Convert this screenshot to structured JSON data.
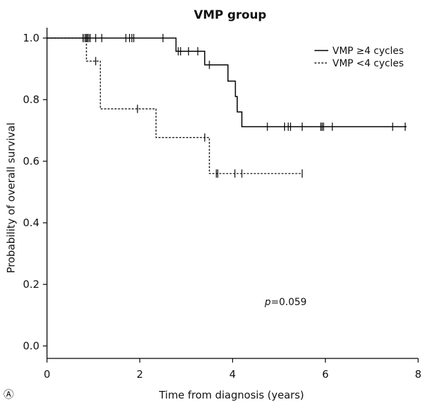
{
  "chart_data": {
    "type": "line",
    "subtype": "kaplan-meier step",
    "title": "VMP group",
    "xlabel": "Time from diagnosis (years)",
    "ylabel": "Probability of overall survival",
    "xlim": [
      0,
      8
    ],
    "ylim": [
      0.0,
      1.0
    ],
    "xticks": [
      "0",
      "2",
      "4",
      "6",
      "8"
    ],
    "yticks": [
      "0.0",
      "0.2",
      "0.4",
      "0.6",
      "0.8",
      "1.0"
    ],
    "grid": false,
    "legend_position": "top-right",
    "annotation_p_label": "p",
    "annotation_p_value": "=0.059",
    "panel_label": "Ⓐ",
    "series": [
      {
        "name": "VMP ≥4 cycles",
        "line_style": "solid",
        "color": "#000000",
        "steps": [
          [
            0,
            1.0
          ],
          [
            2.78,
            0.957
          ],
          [
            3.4,
            0.913
          ],
          [
            3.9,
            0.86
          ],
          [
            4.06,
            0.81
          ],
          [
            4.1,
            0.76
          ],
          [
            4.2,
            0.712
          ],
          [
            7.75,
            0.712
          ]
        ],
        "censors": [
          0.78,
          0.82,
          0.85,
          0.87,
          0.9,
          0.93,
          1.05,
          1.18,
          1.7,
          1.78,
          1.83,
          1.87,
          2.5,
          2.83,
          2.88,
          3.05,
          3.25,
          3.5,
          4.75,
          5.12,
          5.2,
          5.25,
          5.5,
          5.9,
          5.93,
          5.96,
          6.15,
          7.45,
          7.72
        ]
      },
      {
        "name": "VMP <4 cycles",
        "line_style": "dashed",
        "color": "#000000",
        "steps": [
          [
            0,
            1.0
          ],
          [
            0.85,
            0.925
          ],
          [
            1.15,
            0.77
          ],
          [
            2.35,
            0.677
          ],
          [
            3.5,
            0.56
          ],
          [
            5.5,
            0.56
          ]
        ],
        "censors": [
          0.78,
          0.82,
          1.05,
          1.95,
          3.4,
          3.65,
          3.68,
          4.05,
          4.2,
          5.5
        ]
      }
    ]
  }
}
